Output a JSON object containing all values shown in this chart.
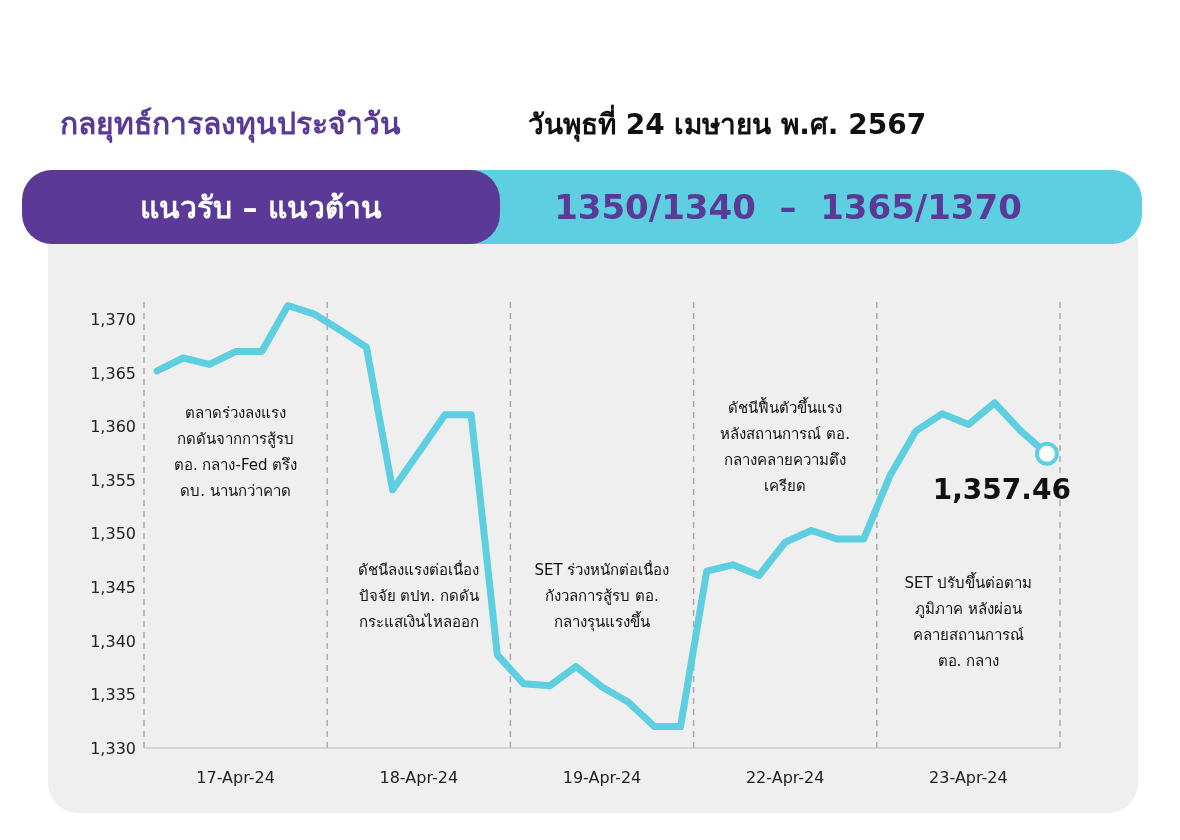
{
  "chart_data": {
    "type": "line",
    "title": "กลยุทธ์การลงทุนประจำวัน",
    "subtitle": "วันพุธที่ 24 เมษายน พ.ศ. 2567",
    "categories": [
      null,
      null,
      null,
      "17-Apr-24",
      null,
      null,
      null,
      null,
      null,
      null,
      "18-Apr-24",
      null,
      null,
      null,
      null,
      null,
      null,
      "19-Apr-24",
      null,
      null,
      null,
      null,
      null,
      null,
      "22-Apr-24",
      null,
      null,
      null,
      null,
      null,
      null,
      "23-Apr-24",
      null,
      null,
      null
    ],
    "series": [
      {
        "color": "#5ecfe0",
        "line_style": "solid",
        "values": [
          1365.2,
          1366.4,
          1365.8,
          1367.0,
          1367.0,
          1371.3,
          1370.5,
          1369.0,
          1367.4,
          1354.1,
          1357.6,
          1361.1,
          1361.1,
          1338.7,
          1336.0,
          1335.8,
          1337.6,
          1335.7,
          1334.3,
          1332.0,
          1332.0,
          1346.5,
          1347.1,
          1346.1,
          1349.2,
          1350.3,
          1349.5,
          1349.5,
          1355.4,
          1359.6,
          1361.2,
          1360.2,
          1362.2,
          1359.6,
          1357.46
        ]
      }
    ],
    "ylim": [
      1330,
      1372
    ],
    "yticks": [
      {
        "value": 1330,
        "label": "1,330"
      },
      {
        "value": 1335,
        "label": "1,335"
      },
      {
        "value": 1340,
        "label": "1,340"
      },
      {
        "value": 1345,
        "label": "1,345"
      },
      {
        "value": 1350,
        "label": "1,350"
      },
      {
        "value": 1355,
        "label": "1,355"
      },
      {
        "value": 1360,
        "label": "1,360"
      },
      {
        "value": 1365,
        "label": "1,365"
      },
      {
        "value": 1370,
        "label": "1,370"
      }
    ],
    "annotations": [
      "แนวรับ – แนวต้าน",
      "1350/1340  –  1365/1370",
      "ตลาดร่วงลงแรง\nกดดันจากการสู้รบ\nตอ. กลาง-Fed ตรึง\nดบ. นานกว่าคาด",
      "ดัชนีลงแรงต่อเนื่อง\nปัจจัย ตปท. กดดัน\nกระแสเงินไหลออก",
      "SET ร่วงหนักต่อเนื่อง\nกังวลการสู้รบ ตอ.\nกลางรุนแรงขึ้น",
      "ดัชนีฟื้นตัวขึ้นแรง\nหลังสถานการณ์ ตอ.\nกลางคลายความตึง\nเครียด",
      "SET ปรับขึ้นต่อตาม\nภูมิภาค หลังผ่อน\nคลายสถานการณ์\nตอ. กลาง",
      "1,357.46"
    ]
  }
}
